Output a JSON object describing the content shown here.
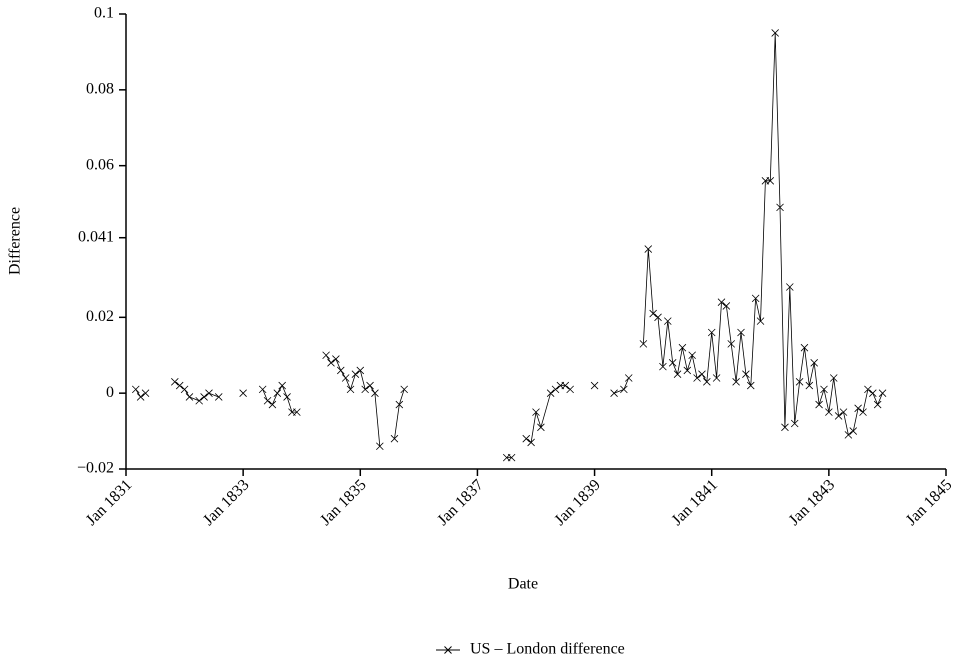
{
  "chart_data": {
    "type": "line",
    "x_label": "Date",
    "y_label": "Difference",
    "x": [
      "1831-03",
      "1831-04",
      "1831-05",
      null,
      "1831-11",
      "1831-12",
      "1832-01",
      "1832-02",
      "1832-04",
      "1832-05",
      "1832-06",
      "1832-08",
      null,
      "1833-01",
      null,
      "1833-05",
      "1833-06",
      "1833-07",
      "1833-08",
      "1833-09",
      "1833-10",
      "1833-11",
      "1833-12",
      null,
      "1834-06",
      "1834-07",
      "1834-08",
      "1834-09",
      "1834-10",
      "1834-11",
      "1834-12",
      "1835-01",
      "1835-02",
      "1835-03",
      "1835-04",
      "1835-05",
      null,
      "1835-08",
      "1835-09",
      "1835-10",
      null,
      "1837-07",
      "1837-08",
      null,
      "1837-11",
      "1837-12",
      "1838-01",
      "1838-02",
      "1838-04",
      "1838-05",
      "1838-06",
      "1838-07",
      "1838-08",
      null,
      "1839-01",
      null,
      "1839-05",
      "1839-07",
      "1839-08",
      null,
      "1839-11",
      "1839-12",
      "1840-01",
      "1840-02",
      "1840-03",
      "1840-04",
      "1840-05",
      "1840-06",
      "1840-07",
      "1840-08",
      "1840-09",
      "1840-10",
      "1840-11",
      "1840-12",
      "1841-01",
      "1841-02",
      "1841-03",
      "1841-04",
      "1841-05",
      "1841-06",
      "1841-07",
      "1841-08",
      "1841-09",
      "1841-10",
      "1841-11",
      "1841-12",
      "1842-01",
      "1842-02",
      "1842-03",
      "1842-04",
      "1842-05",
      "1842-06",
      "1842-07",
      "1842-08",
      "1842-09",
      "1842-10",
      "1842-11",
      "1842-12",
      "1843-01",
      "1843-02",
      "1843-03",
      "1843-04",
      "1843-05",
      "1843-06",
      "1843-07",
      "1843-08",
      "1843-09",
      "1843-10",
      "1843-11",
      "1843-12"
    ],
    "series": [
      {
        "name": "US – London difference",
        "color": "#000000",
        "values": [
          0.001,
          -0.001,
          0.0,
          null,
          0.003,
          0.002,
          0.001,
          -0.001,
          -0.002,
          -0.001,
          0.0,
          -0.001,
          null,
          0.0,
          null,
          0.001,
          -0.002,
          -0.003,
          0.0,
          0.002,
          -0.001,
          -0.005,
          -0.005,
          null,
          0.01,
          0.008,
          0.009,
          0.006,
          0.004,
          0.001,
          0.005,
          0.006,
          0.001,
          0.002,
          0.0,
          -0.014,
          null,
          -0.012,
          -0.003,
          0.001,
          null,
          -0.017,
          -0.017,
          null,
          -0.012,
          -0.013,
          -0.005,
          -0.009,
          0.0,
          0.001,
          0.002,
          0.002,
          0.001,
          null,
          0.002,
          null,
          0.0,
          0.001,
          0.004,
          null,
          0.013,
          0.038,
          0.021,
          0.02,
          0.007,
          0.019,
          0.008,
          0.005,
          0.012,
          0.006,
          0.01,
          0.004,
          0.005,
          0.003,
          0.016,
          0.004,
          0.024,
          0.023,
          0.013,
          0.003,
          0.016,
          0.005,
          0.002,
          0.025,
          0.019,
          0.056,
          0.056,
          0.095,
          0.049,
          -0.009,
          0.028,
          -0.008,
          0.003,
          0.012,
          0.002,
          0.008,
          -0.003,
          0.001,
          -0.005,
          0.004,
          -0.006,
          -0.005,
          -0.011,
          -0.01,
          -0.004,
          -0.005,
          0.001,
          0.0,
          -0.003,
          0.0
        ]
      }
    ],
    "xlim": [
      "1831-01",
      "1845-01"
    ],
    "xticks": [
      {
        "value": "1831-01",
        "label": "Jan 1831"
      },
      {
        "value": "1833-01",
        "label": "Jan 1833"
      },
      {
        "value": "1835-01",
        "label": "Jan 1835"
      },
      {
        "value": "1837-01",
        "label": "Jan 1837"
      },
      {
        "value": "1839-01",
        "label": "Jan 1839"
      },
      {
        "value": "1841-01",
        "label": "Jan 1841"
      },
      {
        "value": "1843-01",
        "label": "Jan 1843"
      },
      {
        "value": "1845-01",
        "label": "Jan 1845"
      }
    ],
    "ylim": [
      -0.02,
      0.1
    ],
    "yticks": [
      {
        "value": -0.02,
        "label": "−0.02"
      },
      0,
      0.02,
      0.041,
      0.06,
      0.08,
      0.1
    ],
    "marker": "x",
    "legend": "bottom"
  }
}
